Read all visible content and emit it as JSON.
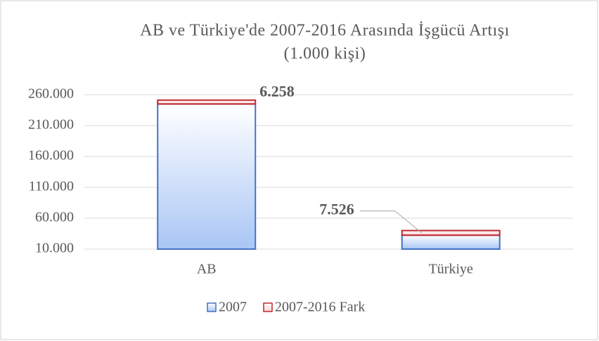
{
  "chart_data": {
    "type": "stacked_bar",
    "title": "AB ve Türkiye'de 2007-2016 Arasında İşgücü Artışı",
    "subtitle": "(1.000 kişi)",
    "categories": [
      "AB",
      "Türkiye"
    ],
    "series": [
      {
        "name": "2007",
        "color": "#a9c6f5",
        "edge": "#4472c4",
        "values": [
          235000,
          22500
        ]
      },
      {
        "name": "2007-2016 Fark",
        "color": "#f9d0d0",
        "edge": "#c0282d",
        "values": [
          6258,
          7526
        ],
        "value_labels": [
          "6.258",
          "7.526"
        ]
      }
    ],
    "ylim": [
      10000,
      260000
    ],
    "yticks": [
      {
        "value": 10000,
        "label": "10.000"
      },
      {
        "value": 60000,
        "label": "60.000"
      },
      {
        "value": 110000,
        "label": "110.000"
      },
      {
        "value": 160000,
        "label": "160.000"
      },
      {
        "value": 210000,
        "label": "210.000"
      },
      {
        "value": 260000,
        "label": "260.000"
      }
    ],
    "grid": true,
    "legend": "bottom"
  }
}
